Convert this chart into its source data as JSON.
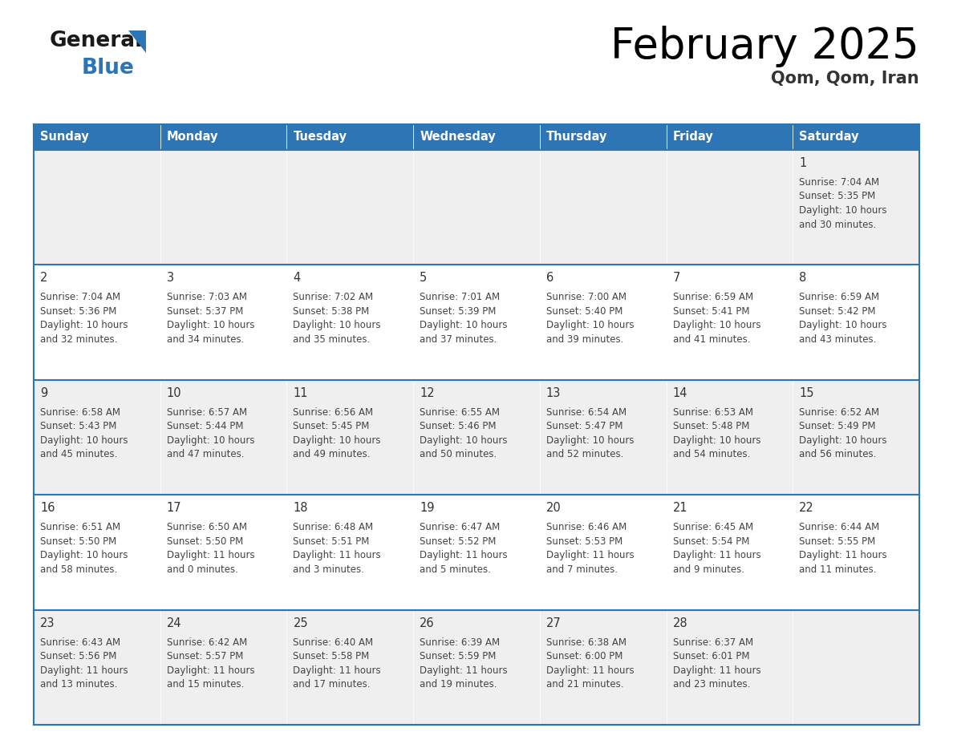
{
  "title": "February 2025",
  "subtitle": "Qom, Qom, Iran",
  "days_of_week": [
    "Sunday",
    "Monday",
    "Tuesday",
    "Wednesday",
    "Thursday",
    "Friday",
    "Saturday"
  ],
  "header_bg": "#2E75B6",
  "header_text": "#FFFFFF",
  "cell_bg_odd": "#EFEFEF",
  "cell_bg_even": "#FFFFFF",
  "border_color": "#2E75B6",
  "day_number_color": "#333333",
  "info_text_color": "#444444",
  "title_color": "#000000",
  "subtitle_color": "#333333",
  "logo_general_color": "#1a1a1a",
  "logo_blue_color": "#2E75B6",
  "logo_triangle_color": "#2E75B6",
  "calendar_data": [
    [
      null,
      null,
      null,
      null,
      null,
      null,
      {
        "day": 1,
        "sunrise": "7:04 AM",
        "sunset": "5:35 PM",
        "daylight": "10 hours",
        "daylight2": "and 30 minutes."
      }
    ],
    [
      {
        "day": 2,
        "sunrise": "7:04 AM",
        "sunset": "5:36 PM",
        "daylight": "10 hours",
        "daylight2": "and 32 minutes."
      },
      {
        "day": 3,
        "sunrise": "7:03 AM",
        "sunset": "5:37 PM",
        "daylight": "10 hours",
        "daylight2": "and 34 minutes."
      },
      {
        "day": 4,
        "sunrise": "7:02 AM",
        "sunset": "5:38 PM",
        "daylight": "10 hours",
        "daylight2": "and 35 minutes."
      },
      {
        "day": 5,
        "sunrise": "7:01 AM",
        "sunset": "5:39 PM",
        "daylight": "10 hours",
        "daylight2": "and 37 minutes."
      },
      {
        "day": 6,
        "sunrise": "7:00 AM",
        "sunset": "5:40 PM",
        "daylight": "10 hours",
        "daylight2": "and 39 minutes."
      },
      {
        "day": 7,
        "sunrise": "6:59 AM",
        "sunset": "5:41 PM",
        "daylight": "10 hours",
        "daylight2": "and 41 minutes."
      },
      {
        "day": 8,
        "sunrise": "6:59 AM",
        "sunset": "5:42 PM",
        "daylight": "10 hours",
        "daylight2": "and 43 minutes."
      }
    ],
    [
      {
        "day": 9,
        "sunrise": "6:58 AM",
        "sunset": "5:43 PM",
        "daylight": "10 hours",
        "daylight2": "and 45 minutes."
      },
      {
        "day": 10,
        "sunrise": "6:57 AM",
        "sunset": "5:44 PM",
        "daylight": "10 hours",
        "daylight2": "and 47 minutes."
      },
      {
        "day": 11,
        "sunrise": "6:56 AM",
        "sunset": "5:45 PM",
        "daylight": "10 hours",
        "daylight2": "and 49 minutes."
      },
      {
        "day": 12,
        "sunrise": "6:55 AM",
        "sunset": "5:46 PM",
        "daylight": "10 hours",
        "daylight2": "and 50 minutes."
      },
      {
        "day": 13,
        "sunrise": "6:54 AM",
        "sunset": "5:47 PM",
        "daylight": "10 hours",
        "daylight2": "and 52 minutes."
      },
      {
        "day": 14,
        "sunrise": "6:53 AM",
        "sunset": "5:48 PM",
        "daylight": "10 hours",
        "daylight2": "and 54 minutes."
      },
      {
        "day": 15,
        "sunrise": "6:52 AM",
        "sunset": "5:49 PM",
        "daylight": "10 hours",
        "daylight2": "and 56 minutes."
      }
    ],
    [
      {
        "day": 16,
        "sunrise": "6:51 AM",
        "sunset": "5:50 PM",
        "daylight": "10 hours",
        "daylight2": "and 58 minutes."
      },
      {
        "day": 17,
        "sunrise": "6:50 AM",
        "sunset": "5:50 PM",
        "daylight": "11 hours",
        "daylight2": "and 0 minutes."
      },
      {
        "day": 18,
        "sunrise": "6:48 AM",
        "sunset": "5:51 PM",
        "daylight": "11 hours",
        "daylight2": "and 3 minutes."
      },
      {
        "day": 19,
        "sunrise": "6:47 AM",
        "sunset": "5:52 PM",
        "daylight": "11 hours",
        "daylight2": "and 5 minutes."
      },
      {
        "day": 20,
        "sunrise": "6:46 AM",
        "sunset": "5:53 PM",
        "daylight": "11 hours",
        "daylight2": "and 7 minutes."
      },
      {
        "day": 21,
        "sunrise": "6:45 AM",
        "sunset": "5:54 PM",
        "daylight": "11 hours",
        "daylight2": "and 9 minutes."
      },
      {
        "day": 22,
        "sunrise": "6:44 AM",
        "sunset": "5:55 PM",
        "daylight": "11 hours",
        "daylight2": "and 11 minutes."
      }
    ],
    [
      {
        "day": 23,
        "sunrise": "6:43 AM",
        "sunset": "5:56 PM",
        "daylight": "11 hours",
        "daylight2": "and 13 minutes."
      },
      {
        "day": 24,
        "sunrise": "6:42 AM",
        "sunset": "5:57 PM",
        "daylight": "11 hours",
        "daylight2": "and 15 minutes."
      },
      {
        "day": 25,
        "sunrise": "6:40 AM",
        "sunset": "5:58 PM",
        "daylight": "11 hours",
        "daylight2": "and 17 minutes."
      },
      {
        "day": 26,
        "sunrise": "6:39 AM",
        "sunset": "5:59 PM",
        "daylight": "11 hours",
        "daylight2": "and 19 minutes."
      },
      {
        "day": 27,
        "sunrise": "6:38 AM",
        "sunset": "6:00 PM",
        "daylight": "11 hours",
        "daylight2": "and 21 minutes."
      },
      {
        "day": 28,
        "sunrise": "6:37 AM",
        "sunset": "6:01 PM",
        "daylight": "11 hours",
        "daylight2": "and 23 minutes."
      },
      null
    ]
  ]
}
